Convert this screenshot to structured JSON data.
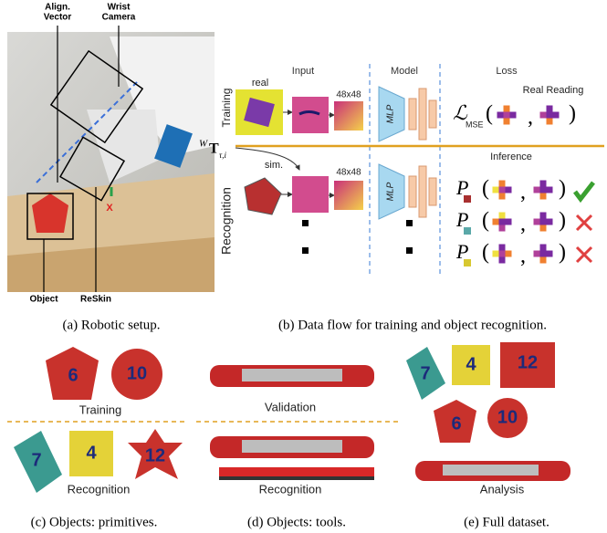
{
  "panel_a": {
    "labels": {
      "align_vector": [
        "Align.",
        "Vector"
      ],
      "wrist_camera": [
        "Wrist",
        "Camera"
      ],
      "object": "Object",
      "reskin": "ReSkin",
      "axis": "X"
    },
    "caption": "(a) Robotic setup."
  },
  "panel_b": {
    "headers": [
      "Input",
      "Model",
      "Loss"
    ],
    "rows": [
      "Training",
      "Recognition"
    ],
    "real": "real",
    "sim": "sim.",
    "size_labels": [
      "48x48",
      "48x48"
    ],
    "model_labels": [
      "MLP",
      "MLP"
    ],
    "transform": {
      "superscript": "W",
      "symbol": "T",
      "subscript": "τ,i"
    },
    "loss": {
      "symbol": "ℒ",
      "subscript": "MSE",
      "open": "(",
      "comma": ",",
      "close": ")",
      "note": "Real Reading"
    },
    "inference": {
      "title": "Inference",
      "rows": [
        {
          "symbol": "P",
          "open": "(",
          "comma": ",",
          "close": ")"
        },
        {
          "symbol": "P",
          "open": "(",
          "comma": ",",
          "close": ")"
        },
        {
          "symbol": "P",
          "open": "(",
          "comma": ",",
          "close": ")"
        }
      ]
    },
    "caption": "(b) Data flow for training and object recognition."
  },
  "panel_c": {
    "labels": [
      "Training",
      "Recognition"
    ],
    "object_numbers": [
      "6",
      "10",
      "7",
      "4",
      "12"
    ],
    "caption": "(c) Objects: primitives."
  },
  "panel_d": {
    "labels": [
      "Validation",
      "Recognition"
    ],
    "caption": "(d) Objects: tools."
  },
  "panel_e": {
    "labels": [
      "Analysis"
    ],
    "object_numbers": [
      "7",
      "4",
      "12",
      "6",
      "10"
    ],
    "caption": "(e) Full dataset."
  }
}
